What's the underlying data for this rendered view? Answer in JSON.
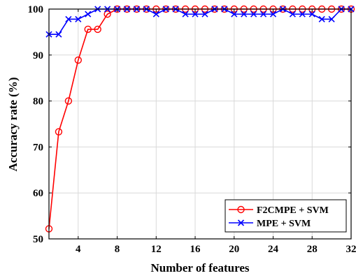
{
  "chart_data": {
    "type": "line",
    "title": "",
    "xlabel": "Number of features",
    "ylabel": "Accuracy rate (%)",
    "xlim": [
      1,
      32
    ],
    "ylim": [
      50,
      100
    ],
    "xticks": [
      4,
      8,
      12,
      16,
      20,
      24,
      28,
      32
    ],
    "yticks": [
      50,
      60,
      70,
      80,
      90,
      100
    ],
    "grid": true,
    "legend_position": "bottom-right",
    "x": [
      1,
      2,
      3,
      4,
      5,
      6,
      7,
      8,
      9,
      10,
      11,
      12,
      13,
      14,
      15,
      16,
      17,
      18,
      19,
      20,
      21,
      22,
      23,
      24,
      25,
      26,
      27,
      28,
      29,
      30,
      31,
      32
    ],
    "series": [
      {
        "name": "F2CMPE + SVM",
        "color": "#ff0000",
        "marker": "circle",
        "values": [
          52.2,
          73.3,
          80.0,
          88.9,
          95.6,
          95.6,
          98.9,
          100,
          100,
          100,
          100,
          100,
          100,
          100,
          100,
          100,
          100,
          100,
          100,
          100,
          100,
          100,
          100,
          100,
          100,
          100,
          100,
          100,
          100,
          100,
          100,
          100
        ]
      },
      {
        "name": "MPE + SVM",
        "color": "#0000ff",
        "marker": "x",
        "values": [
          94.5,
          94.5,
          97.8,
          97.8,
          98.9,
          100,
          100,
          100,
          100,
          100,
          100,
          98.9,
          100,
          100,
          98.9,
          98.9,
          98.9,
          100,
          100,
          98.9,
          98.9,
          98.9,
          98.9,
          98.9,
          100,
          98.9,
          98.9,
          98.9,
          97.8,
          97.8,
          100,
          100
        ]
      }
    ]
  }
}
